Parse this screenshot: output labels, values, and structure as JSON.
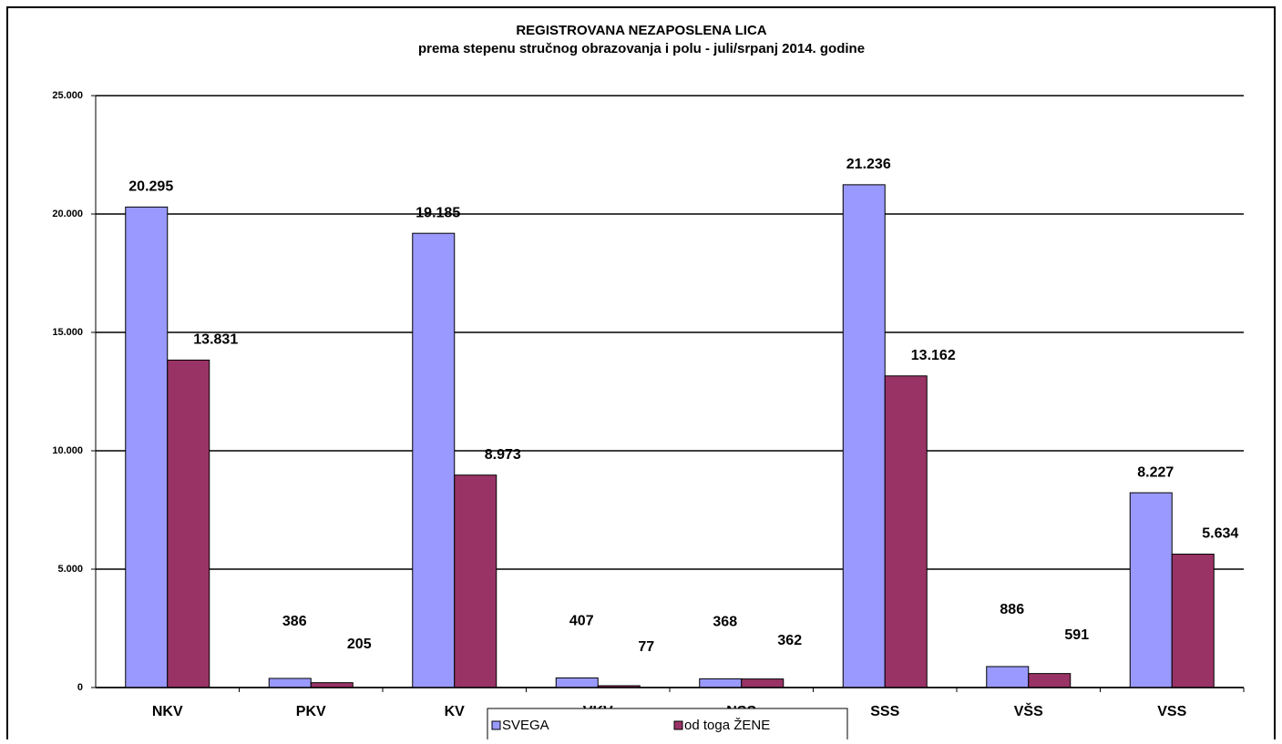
{
  "chart_data": {
    "type": "bar",
    "title": "REGISTROVANA NEZAPOSLENA LICA",
    "subtitle": "prema stepenu stručnog obrazovanja i polu - juli/srpanj 2014. godine",
    "categories": [
      "NKV",
      "PKV",
      "KV",
      "VKV",
      "NSS",
      "SSS",
      "VŠS",
      "VSS"
    ],
    "series": [
      {
        "name": "SVEGA",
        "color": "#9999ff",
        "values": [
          20295,
          386,
          19185,
          407,
          368,
          21236,
          886,
          8227
        ],
        "value_labels": [
          "20.295",
          "386",
          "19.185",
          "407",
          "368",
          "21.236",
          "886",
          "8.227"
        ]
      },
      {
        "name": "od toga ŽENE",
        "color": "#993366",
        "values": [
          13831,
          205,
          8973,
          77,
          362,
          13162,
          591,
          5634
        ],
        "value_labels": [
          "13.831",
          "205",
          "8.973",
          "77",
          "362",
          "13.162",
          "591",
          "5.634"
        ]
      }
    ],
    "ylim": [
      0,
      25000
    ],
    "yticks": [
      0,
      {
        "value": 5000,
        "label": "5.000"
      },
      {
        "value": 10000,
        "label": "10.000"
      },
      {
        "value": 15000,
        "label": "15.000"
      },
      {
        "value": 20000,
        "label": "20.000"
      },
      {
        "value": 25000,
        "label": "25.000"
      }
    ],
    "grid": true,
    "legend": "bottom"
  }
}
